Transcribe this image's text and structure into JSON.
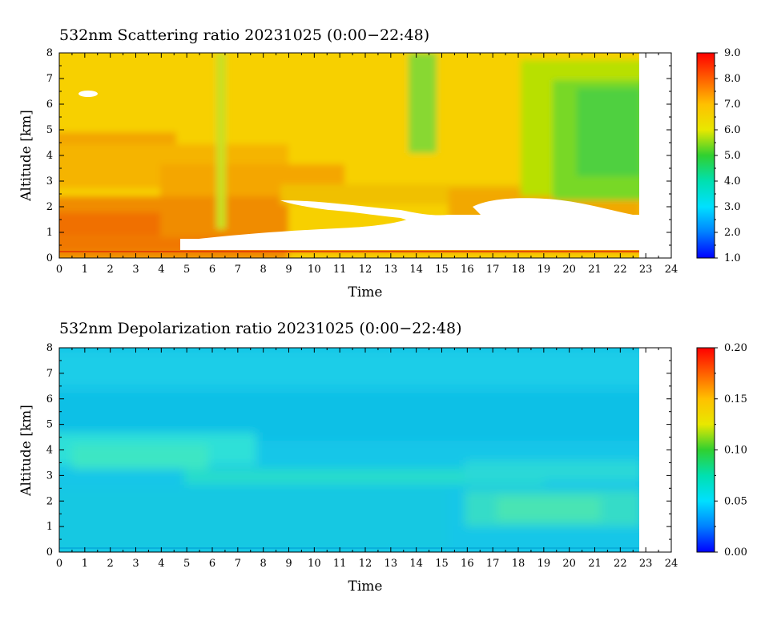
{
  "colors": {
    "nodata": "#ffffff",
    "frame": "#000000"
  },
  "chart_data": [
    {
      "type": "heatmap",
      "title": "532nm Scattering ratio  20231025 (0:00−22:48)",
      "xlabel": "Time",
      "ylabel": "Altitude [km]",
      "xlim": [
        0,
        24
      ],
      "ylim": [
        0,
        8
      ],
      "xticks": [
        "0",
        "1",
        "2",
        "3",
        "4",
        "5",
        "6",
        "7",
        "8",
        "9",
        "10",
        "11",
        "12",
        "13",
        "14",
        "15",
        "16",
        "17",
        "18",
        "19",
        "20",
        "21",
        "22",
        "23",
        "24"
      ],
      "yticks": [
        "0",
        "1",
        "2",
        "3",
        "4",
        "5",
        "6",
        "7",
        "8"
      ],
      "data_end_hour": 22.8,
      "colorbar": {
        "min": 1.0,
        "max": 9.0,
        "ticks": [
          "1.0",
          "2.0",
          "3.0",
          "4.0",
          "5.0",
          "6.0",
          "7.0",
          "8.0",
          "9.0"
        ],
        "colormap": "jet"
      },
      "approx_values": {
        "above_4km_early": 6.3,
        "layer_2_4km": 7.2,
        "below_2km": 7.8,
        "green_band_19_23h_above_2_5km": 4.8,
        "green_streak_14_15h_above_4km": 4.8,
        "white_regions": "above 9.0 (saturated, cloud)"
      }
    },
    {
      "type": "heatmap",
      "title": "532nm Depolarization ratio  20231025 (0:00−22:48)",
      "xlabel": "Time",
      "ylabel": "Altitude [km]",
      "xlim": [
        0,
        24
      ],
      "ylim": [
        0,
        8
      ],
      "xticks": [
        "0",
        "1",
        "2",
        "3",
        "4",
        "5",
        "6",
        "7",
        "8",
        "9",
        "10",
        "11",
        "12",
        "13",
        "14",
        "15",
        "16",
        "17",
        "18",
        "19",
        "20",
        "21",
        "22",
        "23",
        "24"
      ],
      "yticks": [
        "0",
        "1",
        "2",
        "3",
        "4",
        "5",
        "6",
        "7",
        "8"
      ],
      "data_end_hour": 22.8,
      "colorbar": {
        "min": 0.0,
        "max": 0.2,
        "ticks": [
          "0.00",
          "0.05",
          "0.10",
          "0.15",
          "0.20"
        ],
        "colormap": "jet"
      },
      "approx_values": {
        "background": 0.035,
        "aerosol_layer_0_5h_3_4_5km": 0.06,
        "band_6_14h_2_5_3km": 0.055,
        "layer_17_22h_1_2_5km": 0.065
      }
    }
  ]
}
